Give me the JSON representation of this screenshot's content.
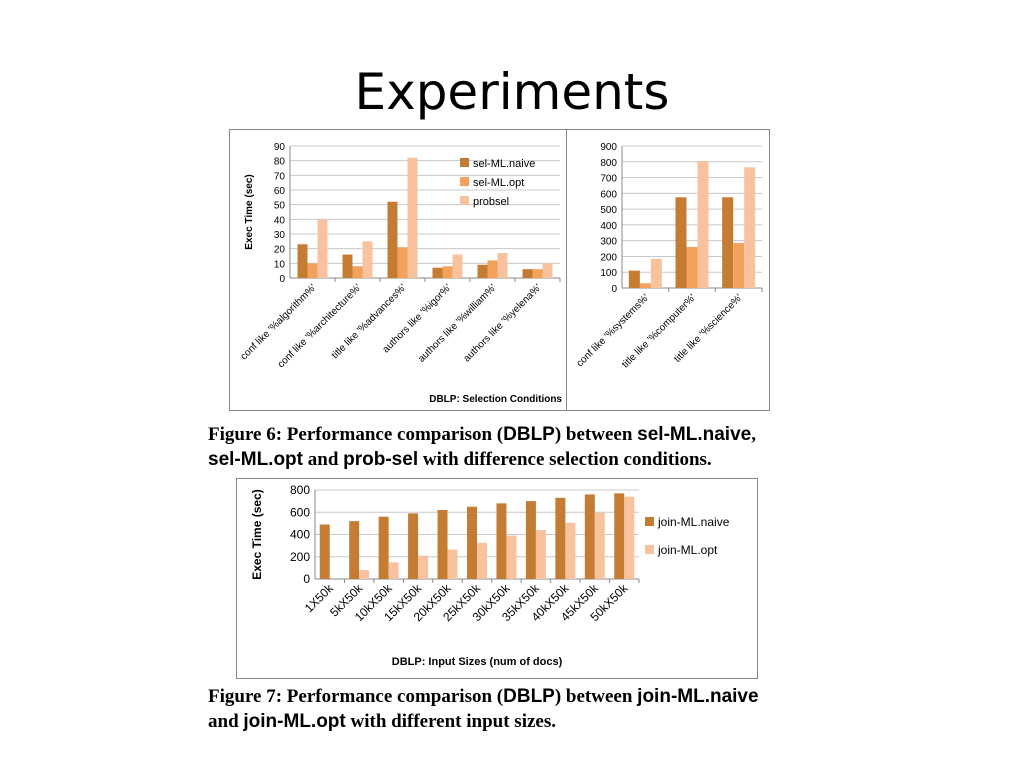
{
  "slide": {
    "title": "Experiments"
  },
  "colors": {
    "naive": "#c47c33",
    "opt": "#f4a25b",
    "probsel": "#f9c29f",
    "grid": "#c8c8c8",
    "axis": "#888888"
  },
  "chart_data": [
    {
      "type": "bar",
      "ylabel": "Exec Time (sec)",
      "xlabel": "DBLP: Selection Conditions",
      "ylim": [
        0,
        90
      ],
      "yticks": [
        0,
        10,
        20,
        30,
        40,
        50,
        60,
        70,
        80,
        90
      ],
      "grid": true,
      "legend": "top-right",
      "categories": [
        "conf like '%algorithm%'",
        "conf like '%architecture%'",
        "title like '%advances%'",
        "authors like '%igor%'",
        "authors like '%william%'",
        "authors like '%yelena%'"
      ],
      "series": [
        {
          "name": "sel-ML.naive",
          "values": [
            23,
            16,
            52,
            7,
            9,
            6
          ]
        },
        {
          "name": "sel-ML.opt",
          "values": [
            10,
            8,
            21,
            8,
            12,
            6
          ]
        },
        {
          "name": "probsel",
          "values": [
            40,
            25,
            82,
            16,
            17,
            10
          ]
        }
      ]
    },
    {
      "type": "bar",
      "ylim": [
        0,
        900
      ],
      "yticks": [
        0,
        100,
        200,
        300,
        400,
        500,
        600,
        700,
        800,
        900
      ],
      "grid": true,
      "categories": [
        "conf like '%systems%'",
        "title like '%computer%'",
        "title like '%science%'"
      ],
      "series": [
        {
          "name": "sel-ML.naive",
          "values": [
            110,
            575,
            575
          ]
        },
        {
          "name": "sel-ML.opt",
          "values": [
            30,
            260,
            285
          ]
        },
        {
          "name": "probsel",
          "values": [
            185,
            805,
            765
          ]
        }
      ]
    },
    {
      "type": "bar",
      "ylabel": "Exec Time (sec)",
      "xlabel": "DBLP: Input Sizes (num of docs)",
      "ylim": [
        0,
        800
      ],
      "yticks": [
        0,
        200,
        400,
        600,
        800
      ],
      "grid": true,
      "legend": "right",
      "categories": [
        "1X50k",
        "5kX50k",
        "10kX50k",
        "15kX50k",
        "20kX50k",
        "25kX50k",
        "30kX50k",
        "35kX50k",
        "40kX50k",
        "45kX50k",
        "50kX50k"
      ],
      "series": [
        {
          "name": "join-ML.naive",
          "values": [
            490,
            520,
            560,
            590,
            620,
            650,
            680,
            700,
            730,
            760,
            770
          ]
        },
        {
          "name": "join-ML.opt",
          "values": [
            0,
            80,
            150,
            210,
            265,
            325,
            390,
            440,
            505,
            595,
            740
          ]
        }
      ]
    }
  ],
  "captions": {
    "fig6": {
      "p1": "Figure 6:  Performance comparison (",
      "s1": "DBLP",
      "p2": ") between ",
      "s2": "sel-ML.naive",
      "p3": ",",
      "s3": "sel-ML.opt",
      "p4": " and ",
      "s4": "prob-sel",
      "p5": " with difference selection conditions."
    },
    "fig7": {
      "p1": "Figure 7:  Performance comparison (",
      "s1": "DBLP",
      "p2": ") between ",
      "s2": "join-ML.naive",
      "p3": "and ",
      "s3": "join-ML.opt",
      "p4": " with different input sizes."
    }
  }
}
